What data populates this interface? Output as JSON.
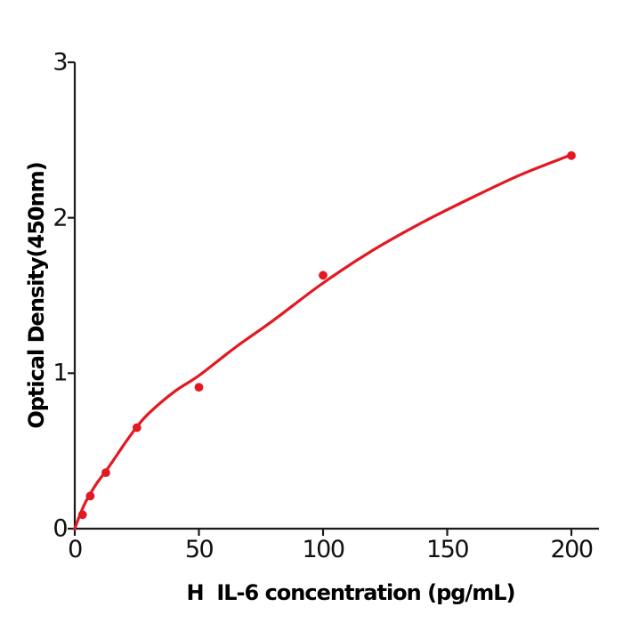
{
  "chart_data": {
    "type": "scatter",
    "title": "",
    "xlabel": "H  IL-6 concentration (pg/mL)",
    "ylabel": "Optical Density(450nm)",
    "x_tick_labels": [
      "0",
      "50",
      "100",
      "150",
      "200"
    ],
    "x_tick_values": [
      0,
      50,
      100,
      150,
      200
    ],
    "y_tick_labels": [
      "0",
      "1",
      "2",
      "3"
    ],
    "y_tick_values": [
      0,
      1,
      2,
      3
    ],
    "xlim": [
      0,
      211
    ],
    "ylim": [
      0,
      3
    ],
    "grid": false,
    "legend": "none",
    "points": {
      "x": [
        3.125,
        6.25,
        12.5,
        25,
        50,
        100,
        200
      ],
      "y": [
        0.09,
        0.21,
        0.36,
        0.65,
        0.91,
        1.63,
        2.4
      ]
    },
    "fit_curve": [
      [
        0,
        0
      ],
      [
        2,
        0.085
      ],
      [
        4,
        0.16
      ],
      [
        6.25,
        0.225
      ],
      [
        9,
        0.295
      ],
      [
        12.5,
        0.37
      ],
      [
        16,
        0.45
      ],
      [
        20,
        0.545
      ],
      [
        25,
        0.655
      ],
      [
        30,
        0.745
      ],
      [
        40,
        0.88
      ],
      [
        50,
        0.985
      ],
      [
        65,
        1.17
      ],
      [
        80,
        1.34
      ],
      [
        100,
        1.58
      ],
      [
        120,
        1.79
      ],
      [
        140,
        1.97
      ],
      [
        160,
        2.13
      ],
      [
        180,
        2.28
      ],
      [
        200,
        2.405
      ]
    ],
    "marker_color": "#e31822",
    "line_color": "#e31822",
    "axis_color": "#1a1a1a"
  }
}
